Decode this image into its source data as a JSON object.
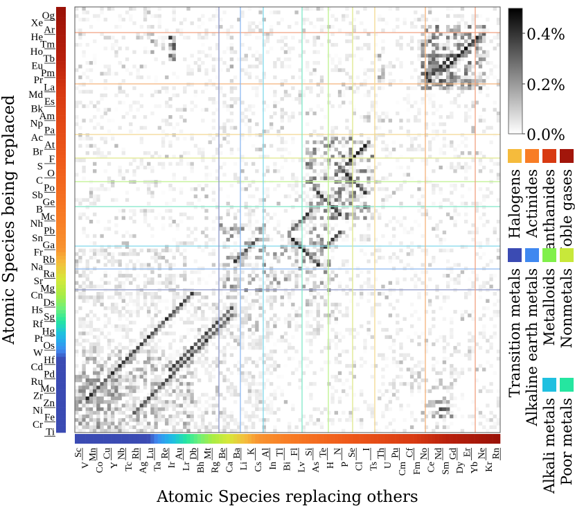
{
  "chart_data": {
    "type": "heatmap",
    "xlabel": "Atomic Species replacing others",
    "ylabel": "Atomic Species being replaced",
    "colorbar": {
      "min_label": "0.0%",
      "mid_label": "0.2%",
      "max_label": "0.4%",
      "range": [
        0,
        0.5
      ]
    },
    "x_ticks": [
      "Sc",
      "V",
      "Mn",
      "Co",
      "Cu",
      "Y",
      "Nb",
      "Tc",
      "Rh",
      "Ag",
      "Lu",
      "Ta",
      "Re",
      "Ir",
      "Au",
      "Lr",
      "Db",
      "Bh",
      "Mt",
      "Rg",
      "Be",
      "Ca",
      "Ba",
      "Li",
      "K",
      "Cs",
      "Al",
      "In",
      "Tl",
      "Bi",
      "Fl",
      "Lv",
      "Si",
      "As",
      "Te",
      "H",
      "N",
      "P",
      "Se",
      "Cl",
      "I",
      "Ts",
      "Th",
      "U",
      "Pu",
      "Cm",
      "Cf",
      "Fm",
      "No",
      "Ce",
      "Nd",
      "Sm",
      "Gd",
      "Dy",
      "Er",
      "Yb",
      "Ne",
      "Kr",
      "Rn"
    ],
    "y_ticks": [
      "Og",
      "Xe",
      "Ar",
      "He",
      "Tm",
      "Ho",
      "Tb",
      "Eu",
      "Pm",
      "Pr",
      "La",
      "Md",
      "Es",
      "Bk",
      "Am",
      "Np",
      "Pa",
      "Ac",
      "At",
      "Br",
      "F",
      "S",
      "O",
      "C",
      "Po",
      "Sb",
      "Ge",
      "B",
      "Mc",
      "Nh",
      "Pb",
      "Sn",
      "Ga",
      "Fr",
      "Rb",
      "Na",
      "Ra",
      "Sr",
      "Mg",
      "Cn",
      "Ds",
      "Hs",
      "Sg",
      "Rf",
      "Hg",
      "Pt",
      "Os",
      "W",
      "Hf",
      "Cd",
      "Pd",
      "Ru",
      "Mo",
      "Zr",
      "Zn",
      "Ni",
      "Fe",
      "Cr",
      "Ti"
    ],
    "groups": [
      {
        "name": "Transition metals",
        "color": "#3b4bb3"
      },
      {
        "name": "Alkaline earth metals",
        "color": "#3f88f0"
      },
      {
        "name": "Alkali metals",
        "color": "#1fc0e0"
      },
      {
        "name": "Poor metals",
        "color": "#25e6a0"
      },
      {
        "name": "Metalloids",
        "color": "#80f04a"
      },
      {
        "name": "Nonmetals",
        "color": "#c8e83a"
      },
      {
        "name": "Halogens",
        "color": "#f5bb3c"
      },
      {
        "name": "Actinides",
        "color": "#f87d25"
      },
      {
        "name": "Lanthanides",
        "color": "#d83a12"
      },
      {
        "name": "Noble gases",
        "color": "#a2160b"
      }
    ],
    "dark_cells_percent": [
      {
        "replaced": "Tb",
        "replacing": "Er",
        "value": 0.45
      },
      {
        "replaced": "Ho",
        "replacing": "Dy",
        "value": 0.42
      },
      {
        "replaced": "Pm",
        "replacing": "Ce",
        "value": 0.4
      },
      {
        "replaced": "Eu",
        "replacing": "Y",
        "value": 0.38
      },
      {
        "replaced": "F",
        "replacing": "I",
        "value": 0.45
      },
      {
        "replaced": "O",
        "replacing": "Se",
        "value": 0.42
      },
      {
        "replaced": "Ge",
        "replacing": "As",
        "value": 0.4
      },
      {
        "replaced": "Sb",
        "replacing": "Si",
        "value": 0.38
      },
      {
        "replaced": "Sn",
        "replacing": "Tl",
        "value": 0.4
      },
      {
        "replaced": "Rb",
        "replacing": "Cs",
        "value": 0.45
      },
      {
        "replaced": "Na",
        "replacing": "Ca",
        "value": 0.38
      },
      {
        "replaced": "Os",
        "replacing": "Rh",
        "value": 0.4
      },
      {
        "replaced": "Pd",
        "replacing": "Au",
        "value": 0.42
      },
      {
        "replaced": "Mo",
        "replacing": "Ir",
        "value": 0.4
      },
      {
        "replaced": "Fe",
        "replacing": "Co",
        "value": 0.42
      },
      {
        "replaced": "Zr",
        "replacing": "Dy",
        "value": 0.4
      },
      {
        "replaced": "W",
        "replacing": "V",
        "value": 0.3
      }
    ]
  }
}
